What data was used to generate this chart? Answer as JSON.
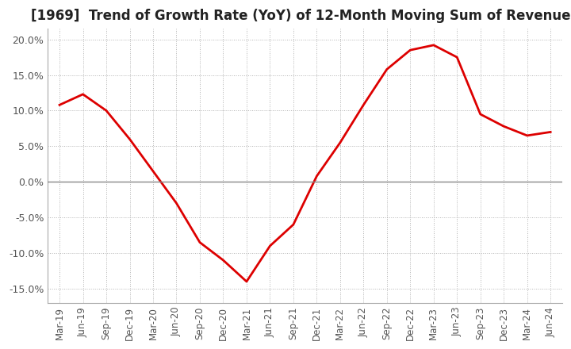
{
  "title": "[1969]  Trend of Growth Rate (YoY) of 12-Month Moving Sum of Revenues",
  "title_fontsize": 12,
  "line_color": "#dd0000",
  "background_color": "#ffffff",
  "plot_bg_color": "#ffffff",
  "ylim": [
    -0.17,
    0.215
  ],
  "yticks": [
    -0.15,
    -0.1,
    -0.05,
    0.0,
    0.05,
    0.1,
    0.15,
    0.2
  ],
  "dates": [
    "Mar-19",
    "Jun-19",
    "Sep-19",
    "Dec-19",
    "Mar-20",
    "Jun-20",
    "Sep-20",
    "Dec-20",
    "Mar-21",
    "Jun-21",
    "Sep-21",
    "Dec-21",
    "Mar-22",
    "Jun-22",
    "Sep-22",
    "Dec-22",
    "Mar-23",
    "Jun-23",
    "Sep-23",
    "Dec-23",
    "Mar-24",
    "Jun-24"
  ],
  "values": [
    0.108,
    0.123,
    0.1,
    0.06,
    0.015,
    -0.03,
    -0.085,
    -0.11,
    -0.14,
    -0.09,
    -0.06,
    0.008,
    0.055,
    0.108,
    0.158,
    0.185,
    0.192,
    0.175,
    0.095,
    0.078,
    0.065,
    0.07
  ],
  "grid_color": "#aaaaaa",
  "zero_line_color": "#888888",
  "tick_color": "#555555",
  "spine_color": "#aaaaaa"
}
